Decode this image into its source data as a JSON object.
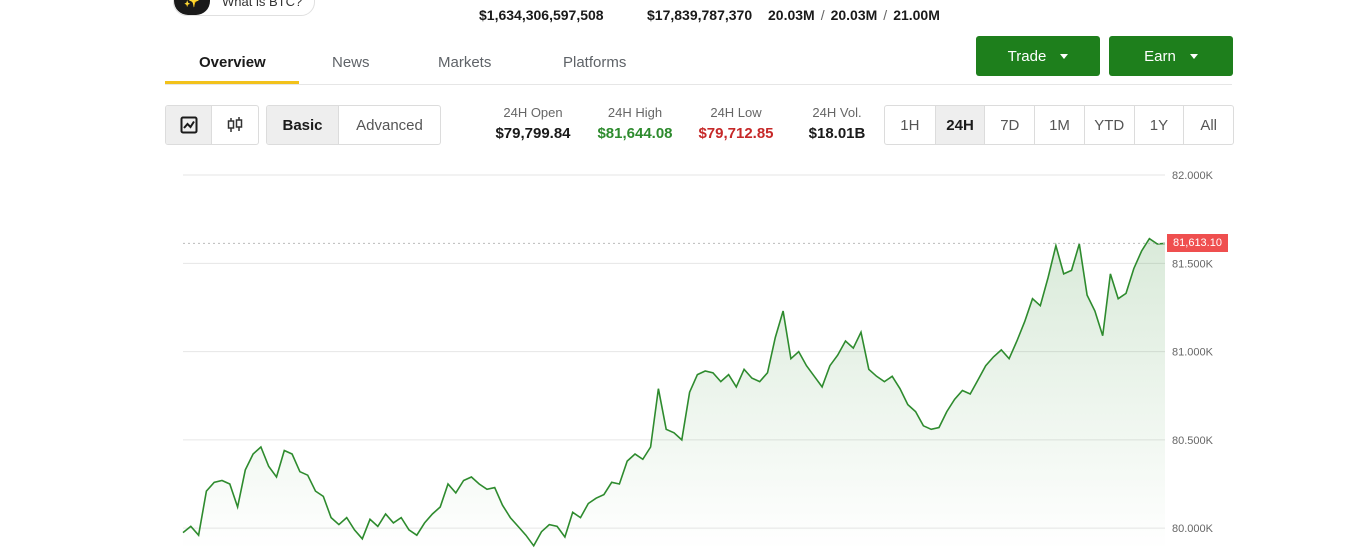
{
  "ai_chip": {
    "icon": "sparkle-icon",
    "label": "What is BTC?"
  },
  "stats": {
    "market_cap": "$1,634,306,597,508",
    "volume": "$17,839,787,370",
    "supply_circulating": "20.03M",
    "supply_total": "20.03M",
    "supply_max": "21.00M",
    "sep": "/"
  },
  "tabs": [
    {
      "label": "Overview",
      "active": true
    },
    {
      "label": "News"
    },
    {
      "label": "Markets"
    },
    {
      "label": "Platforms"
    }
  ],
  "actions": {
    "trade": "Trade",
    "earn": "Earn"
  },
  "chart_type_toggle": {
    "line_icon": "line-chart-icon",
    "candle_icon": "candlestick-icon",
    "selected": "line"
  },
  "mode_toggle": {
    "basic": "Basic",
    "advanced": "Advanced",
    "selected": "Basic"
  },
  "summary": {
    "open_label": "24H Open",
    "open": "$79,799.84",
    "high_label": "24H High",
    "high": "$81,644.08",
    "low_label": "24H Low",
    "low": "$79,712.85",
    "vol_label": "24H Vol.",
    "vol": "$18.01B"
  },
  "ranges": {
    "options": [
      "1H",
      "24H",
      "7D",
      "1M",
      "YTD",
      "1Y",
      "All"
    ],
    "selected": "24H"
  },
  "colors": {
    "line": "#2e8b2e",
    "accent": "#1e7f1c",
    "tab_underline": "#f2c21b",
    "price_tag": "#ef4f4f"
  },
  "chart_data": {
    "type": "area",
    "y_ticks": [
      {
        "value": 82000,
        "label": "82.000K"
      },
      {
        "value": 81500,
        "label": "81.500K"
      },
      {
        "value": 81000,
        "label": "81.000K"
      },
      {
        "value": 80500,
        "label": "80.500K"
      },
      {
        "value": 80000,
        "label": "80.000K"
      }
    ],
    "ylim": [
      79950,
      82040
    ],
    "current_price": 81613.1,
    "current_price_label": "81,613.10",
    "grid": true,
    "series": [
      {
        "values": [
          79975,
          80010,
          79960,
          80210,
          80260,
          80270,
          80250,
          80120,
          80330,
          80420,
          80460,
          80350,
          80290,
          80440,
          80420,
          80320,
          80300,
          80210,
          80180,
          80060,
          80020,
          80060,
          79990,
          79940,
          80050,
          80010,
          80080,
          80030,
          80060,
          79990,
          79960,
          80030,
          80080,
          80120,
          80250,
          80200,
          80270,
          80290,
          80250,
          80220,
          80230,
          80130,
          80060,
          80010,
          79960,
          79900,
          79980,
          80020,
          80010,
          79950,
          80090,
          80060,
          80140,
          80170,
          80190,
          80260,
          80250,
          80380,
          80420,
          80390,
          80460,
          80790,
          80560,
          80540,
          80500,
          80770,
          80870,
          80890,
          80880,
          80830,
          80870,
          80800,
          80900,
          80850,
          80830,
          80880,
          81080,
          81230,
          80960,
          81000,
          80920,
          80860,
          80800,
          80920,
          80980,
          81060,
          81020,
          81110,
          80900,
          80860,
          80830,
          80860,
          80790,
          80700,
          80660,
          80580,
          80560,
          80570,
          80660,
          80730,
          80780,
          80760,
          80840,
          80920,
          80970,
          81010,
          80960,
          81060,
          81170,
          81300,
          81260,
          81420,
          81600,
          81440,
          81460,
          81610,
          81320,
          81230,
          81090,
          81440,
          81300,
          81330,
          81470,
          81570,
          81640,
          81610,
          81613
        ]
      }
    ]
  }
}
